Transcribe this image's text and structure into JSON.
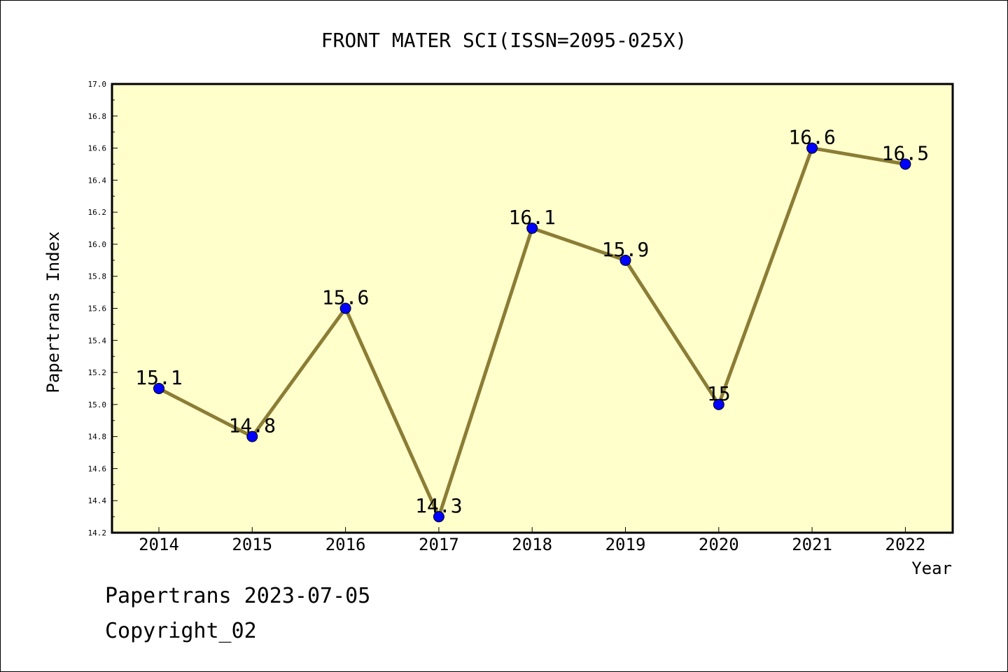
{
  "chart_data": {
    "type": "line",
    "title": "FRONT MATER SCI(ISSN=2095-025X)",
    "xlabel": "Year",
    "ylabel": "Papertrans Index",
    "categories": [
      "2014",
      "2015",
      "2016",
      "2017",
      "2018",
      "2019",
      "2020",
      "2021",
      "2022"
    ],
    "series": [
      {
        "values": [
          15.1,
          14.8,
          15.6,
          14.3,
          16.1,
          15.9,
          15.0,
          16.6,
          16.5
        ],
        "labels": [
          "15.1",
          "14.8",
          "15.6",
          "14.3",
          "16.1",
          "15.9",
          "15",
          "16.6",
          "16.5"
        ]
      }
    ],
    "ylim": [
      14.2,
      17.0
    ],
    "yticks": [
      "14.2",
      "14.4",
      "14.6",
      "14.8",
      "15.0",
      "15.2",
      "15.4",
      "15.6",
      "15.8",
      "16.0",
      "16.2",
      "16.4",
      "16.6",
      "16.8",
      "17.0"
    ],
    "grid": false,
    "legend": "none",
    "colors": {
      "plot_background": "#ffffcc",
      "line": "#8b7d35",
      "marker": "#0000ff"
    }
  },
  "footer": {
    "line1": "Papertrans 2023-07-05",
    "line2": "Copyright_02"
  }
}
